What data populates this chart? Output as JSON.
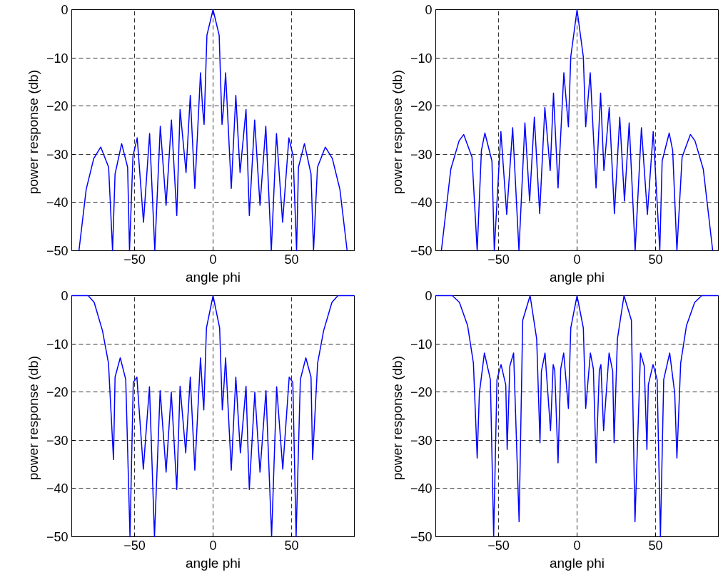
{
  "chart_data": [
    {
      "type": "line",
      "xlabel": "angle phi",
      "ylabel": "power  response (db)",
      "xlim": [
        -90,
        90
      ],
      "ylim": [
        -50,
        0
      ],
      "xticks": [
        -50,
        0,
        50
      ],
      "yticks": [
        -50,
        -40,
        -30,
        -20,
        -10,
        0
      ],
      "grid": true,
      "color": "#0000ff",
      "x": [
        -85.4,
        -80.8,
        -76,
        -71.5,
        -66.5,
        -64,
        -62.4,
        -58.2,
        -54.4,
        -53.2,
        -51,
        -48.3,
        -44.3,
        -40.4,
        -37.1,
        -33.6,
        -29.9,
        -26.5,
        -23.1,
        -21,
        -17.2,
        -14.5,
        -11.6,
        -8,
        -6.6,
        -5.7,
        -3.9,
        0,
        3.9,
        5.7,
        6.6,
        8,
        11.6,
        14.5,
        17.2,
        21,
        23.1,
        26.5,
        29.9,
        33.6,
        37.1,
        40.4,
        44.3,
        48.3,
        51,
        53.2,
        54.4,
        58.2,
        62.4,
        64,
        66.5,
        71.5,
        76,
        80.8,
        85.4
      ],
      "values": [
        -50,
        -37.3,
        -30.9,
        -28.5,
        -32.7,
        -50,
        -34.1,
        -27.8,
        -32.7,
        -50,
        -30.4,
        -26.6,
        -44.1,
        -25.7,
        -50,
        -24.2,
        -40.6,
        -22.9,
        -42.7,
        -20.7,
        -33.8,
        -17.8,
        -37.1,
        -13.1,
        -20.7,
        -23.8,
        -5.3,
        0,
        -5.3,
        -23.8,
        -20.7,
        -13.1,
        -37.1,
        -17.8,
        -33.8,
        -20.7,
        -42.7,
        -22.9,
        -40.6,
        -24.2,
        -50,
        -25.7,
        -44.1,
        -26.6,
        -30.4,
        -50,
        -32.7,
        -27.8,
        -34.1,
        -50,
        -32.7,
        -28.5,
        -30.9,
        -37.3,
        -50
      ]
    },
    {
      "type": "line",
      "xlabel": "angle phi",
      "ylabel": "power  response (db)",
      "xlim": [
        -90,
        90
      ],
      "ylim": [
        -50,
        0
      ],
      "xticks": [
        -50,
        0,
        50
      ],
      "yticks": [
        -50,
        -40,
        -30,
        -20,
        -10,
        0
      ],
      "grid": true,
      "color": "#0000ff",
      "x": [
        -86.4,
        -80.4,
        -75.1,
        -72.2,
        -66.9,
        -63.6,
        -60.9,
        -58.7,
        -54.2,
        -52.7,
        -48.5,
        -44.8,
        -41,
        -37,
        -33.2,
        -30.2,
        -27.2,
        -23.8,
        -20.5,
        -17.1,
        -15,
        -12.1,
        -8.4,
        -5.5,
        -4,
        0,
        4,
        5.5,
        8.4,
        12.1,
        15,
        17.1,
        20.5,
        23.8,
        27.2,
        30.2,
        33.2,
        37,
        41,
        44.8,
        48.5,
        52.7,
        54.2,
        58.7,
        60.9,
        63.6,
        66.9,
        72.2,
        75.1,
        80.4,
        86.4
      ],
      "values": [
        -50,
        -33.1,
        -27.2,
        -25.9,
        -30.6,
        -50,
        -29.2,
        -25.6,
        -31.4,
        -50,
        -25.3,
        -42.5,
        -24.5,
        -50,
        -23.5,
        -39.7,
        -22.3,
        -42.3,
        -20.3,
        -33.4,
        -17.3,
        -37,
        -13.1,
        -24.3,
        -9.8,
        0,
        -9.8,
        -24.3,
        -13.1,
        -37,
        -17.3,
        -33.4,
        -20.3,
        -42.3,
        -22.3,
        -39.7,
        -23.5,
        -50,
        -24.5,
        -42.5,
        -25.3,
        -50,
        -31.4,
        -25.6,
        -29.2,
        -50,
        -30.6,
        -25.9,
        -27.2,
        -33.1,
        -50
      ]
    },
    {
      "type": "line",
      "xlabel": "angle phi",
      "ylabel": "power  response (db)",
      "xlim": [
        -90,
        90
      ],
      "ylim": [
        -50,
        0
      ],
      "xticks": [
        -50,
        0,
        50
      ],
      "yticks": [
        -50,
        -40,
        -30,
        -20,
        -10,
        0
      ],
      "grid": true,
      "color": "#0000ff",
      "x": [
        -90,
        -79.5,
        -75.7,
        -70.4,
        -66.6,
        -63.4,
        -62.4,
        -59.1,
        -55.6,
        -52.9,
        -50.8,
        -48.5,
        -44.4,
        -40.5,
        -37.3,
        -33.7,
        -29.9,
        -26.6,
        -23.1,
        -21,
        -17.4,
        -14.5,
        -11.6,
        -8,
        -6.6,
        -5.9,
        -4.2,
        0,
        4.2,
        5.9,
        6.6,
        8,
        11.6,
        14.5,
        17.4,
        21,
        23.1,
        26.6,
        29.9,
        33.7,
        37.3,
        40.5,
        44.4,
        48.5,
        50.8,
        52.9,
        55.6,
        59.1,
        62.4,
        63.4,
        66.6,
        70.4,
        75.7,
        79.5,
        90
      ],
      "values": [
        0,
        0,
        -1.4,
        -7.3,
        -14,
        -34,
        -16.9,
        -12.9,
        -17.4,
        -50,
        -18,
        -16.9,
        -36,
        -18.9,
        -50,
        -19.7,
        -36.6,
        -20,
        -40.2,
        -18.8,
        -32.6,
        -16.9,
        -36.2,
        -12.9,
        -20.5,
        -23.7,
        -6.7,
        0,
        -6.7,
        -23.7,
        -20.5,
        -12.9,
        -36.2,
        -16.9,
        -32.6,
        -18.8,
        -40.2,
        -20,
        -36.6,
        -19.7,
        -50,
        -18.9,
        -36,
        -16.9,
        -18,
        -50,
        -17.4,
        -12.9,
        -16.9,
        -34,
        -14,
        -7.3,
        -1.4,
        0,
        0
      ]
    },
    {
      "type": "line",
      "xlabel": "angle phi",
      "ylabel": "power  response (db)",
      "xlim": [
        -90,
        90
      ],
      "ylim": [
        -50,
        0
      ],
      "xticks": [
        -50,
        0,
        50
      ],
      "yticks": [
        -50,
        -40,
        -30,
        -20,
        -10,
        0
      ],
      "grid": true,
      "color": "#0000ff",
      "x": [
        -90,
        -79.4,
        -74.9,
        -69.7,
        -66,
        -63.6,
        -62.2,
        -59,
        -55.2,
        -53.1,
        -51,
        -48.4,
        -45.4,
        -44.5,
        -42.8,
        -40.4,
        -36.9,
        -34.6,
        -29.9,
        -25.7,
        -23.6,
        -22.7,
        -20.4,
        -16.9,
        -15.2,
        -14.2,
        -12.1,
        -10.4,
        -8.5,
        -5.5,
        -4,
        0,
        4,
        5.5,
        8.5,
        10.4,
        12.1,
        14.2,
        15.2,
        16.9,
        20.4,
        22.7,
        23.6,
        25.7,
        29.9,
        34.6,
        36.9,
        40.4,
        42.8,
        44.5,
        45.4,
        48.4,
        51,
        53.1,
        55.2,
        59,
        62.2,
        63.6,
        66,
        69.7,
        74.9,
        79.4,
        90
      ],
      "values": [
        0,
        0,
        -1.4,
        -6.2,
        -14,
        -33.7,
        -20.2,
        -11.9,
        -17.4,
        -50,
        -17.4,
        -14.3,
        -18.5,
        -31.9,
        -14.6,
        -11.9,
        -46.9,
        -5.1,
        0,
        -9,
        -30.5,
        -15.7,
        -11.9,
        -28,
        -14.3,
        -15.5,
        -34.7,
        -15.2,
        -11.9,
        -23.4,
        -6.7,
        0,
        -6.7,
        -23.4,
        -11.9,
        -15.2,
        -34.7,
        -15.5,
        -14.3,
        -28,
        -11.9,
        -15.7,
        -30.5,
        -9,
        0,
        -5.1,
        -46.9,
        -11.9,
        -14.6,
        -31.9,
        -18.5,
        -14.3,
        -17.4,
        -50,
        -17.4,
        -11.9,
        -20.2,
        -33.7,
        -14,
        -6.2,
        -1.4,
        0,
        0
      ]
    }
  ]
}
